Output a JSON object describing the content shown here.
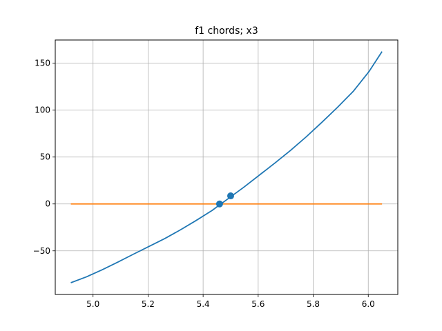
{
  "chart_data": {
    "type": "line",
    "title": "f1 chords; x3",
    "xlabel": "",
    "ylabel": "",
    "xlim": [
      4.8627,
      6.1073
    ],
    "ylim": [
      -96.5,
      174.8
    ],
    "grid": true,
    "x_ticks": [
      5.0,
      5.2,
      5.4,
      5.6,
      5.8,
      6.0
    ],
    "x_tick_labels": [
      "5.0",
      "5.2",
      "5.4",
      "5.6",
      "5.8",
      "6.0"
    ],
    "y_ticks": [
      -50,
      0,
      50,
      100,
      150
    ],
    "y_tick_labels": [
      "−50",
      "0",
      "50",
      "100",
      "150"
    ],
    "series": [
      {
        "kind": "curve",
        "color": "#1f77b4",
        "x": [
          4.9193,
          4.9763,
          5.0333,
          5.0903,
          5.1473,
          5.2043,
          5.2613,
          5.3183,
          5.3753,
          5.4323,
          5.4893,
          5.5463,
          5.6033,
          5.6603,
          5.7173,
          5.7743,
          5.8313,
          5.8883,
          5.9453,
          6.0023,
          6.05
        ],
        "y": [
          -84.0,
          -77.7,
          -70.2,
          -62.0,
          -53.5,
          -45.2,
          -36.8,
          -27.5,
          -17.5,
          -7.0,
          5.3,
          17.5,
          30.5,
          43.5,
          57.0,
          71.5,
          87.0,
          103.0,
          120.0,
          141.0,
          162.5
        ]
      },
      {
        "kind": "horizontal",
        "color": "#ff7f0e",
        "x": [
          4.9193,
          6.05
        ],
        "y": [
          0,
          0
        ]
      },
      {
        "kind": "points",
        "color": "#1f77b4",
        "x": [
          5.4597,
          5.5
        ],
        "y": [
          0,
          8.6
        ]
      }
    ]
  }
}
